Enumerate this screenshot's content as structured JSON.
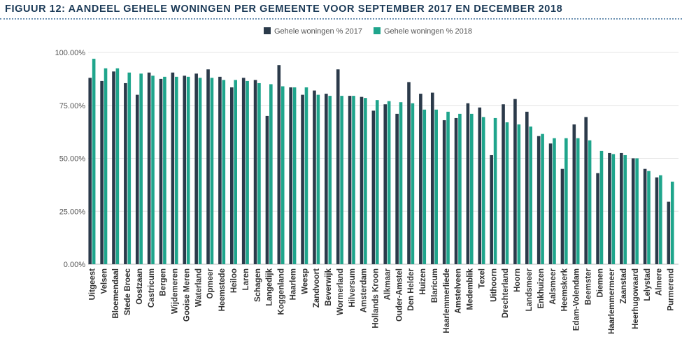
{
  "figure_title": "FIGUUR 12: AANDEEL GEHELE WONINGEN PER GEMEENTE VOOR SEPTEMBER 2017 EN DECEMBER 2018",
  "colors": {
    "series_2017": "#2b3a4a",
    "series_2018": "#1fa58c",
    "title": "#1b3a57",
    "axis_text": "#555555",
    "grid": "#e4e4e4"
  },
  "chart_data": {
    "type": "bar",
    "title": "",
    "xlabel": "",
    "ylabel": "",
    "ylim": [
      0,
      100
    ],
    "yticks": [
      0,
      25,
      50,
      75,
      100
    ],
    "ytick_labels": [
      "0.00%",
      "25.00%",
      "50.00%",
      "75.00%",
      "100.00%"
    ],
    "legend_position": "top-center",
    "categories": [
      "Uitgeest",
      "Velsen",
      "Bloemendaal",
      "Stede Broec",
      "Oostzaan",
      "Castricum",
      "Bergen",
      "Wijdemeren",
      "Gooise Meren",
      "Waterland",
      "Opmeer",
      "Heemstede",
      "Heiloo",
      "Laren",
      "Schagen",
      "Langedijk",
      "Koggenland",
      "Haarlem",
      "Weesp",
      "Zandvoort",
      "Beverwijk",
      "Wormerland",
      "Hilversum",
      "Amsterdam",
      "Hollands Kroon",
      "Alkmaar",
      "Ouder-Amstel",
      "Den Helder",
      "Huizen",
      "Blaricum",
      "Haarlemmerliede",
      "Amstelveen",
      "Medemblik",
      "Texel",
      "Uithoorn",
      "Drechterland",
      "Hoorn",
      "Landsmeer",
      "Enkhuizen",
      "Aalsmeer",
      "Heemskerk",
      "Edam-Volendam",
      "Beemster",
      "Diemen",
      "Haarlemmermeer",
      "Zaanstad",
      "Heerhugowaard",
      "Lelystad",
      "Almere",
      "Purmerend"
    ],
    "series": [
      {
        "name": "Gehele woningen % 2017",
        "values": [
          88,
          86.5,
          91,
          85.5,
          80,
          90.5,
          87.5,
          90.5,
          89,
          90,
          92,
          88.5,
          83.5,
          88,
          87,
          70,
          94,
          83.5,
          80,
          82,
          80.5,
          92,
          79.5,
          79,
          72.5,
          75.5,
          71,
          86,
          80.5,
          81,
          68,
          69,
          76,
          74,
          51.5,
          75.5,
          78,
          72,
          60.5,
          57,
          45,
          66,
          69.5,
          43,
          52.5,
          52.5,
          50,
          45,
          41,
          29.5
        ]
      },
      {
        "name": "Gehele woningen % 2018",
        "values": [
          97,
          92.5,
          92.5,
          90.5,
          90,
          89,
          88.5,
          88.5,
          88.5,
          88,
          88,
          87,
          87,
          86.5,
          85.5,
          85,
          84,
          83.5,
          83.5,
          80,
          79.5,
          79.5,
          79.5,
          78.5,
          77.5,
          77,
          76.5,
          76,
          73,
          73,
          72,
          71,
          71,
          69.5,
          69,
          67,
          66,
          65,
          61.5,
          59.5,
          59.5,
          59.5,
          58.5,
          53.5,
          52,
          51.5,
          50,
          44,
          42,
          39
        ]
      }
    ]
  }
}
